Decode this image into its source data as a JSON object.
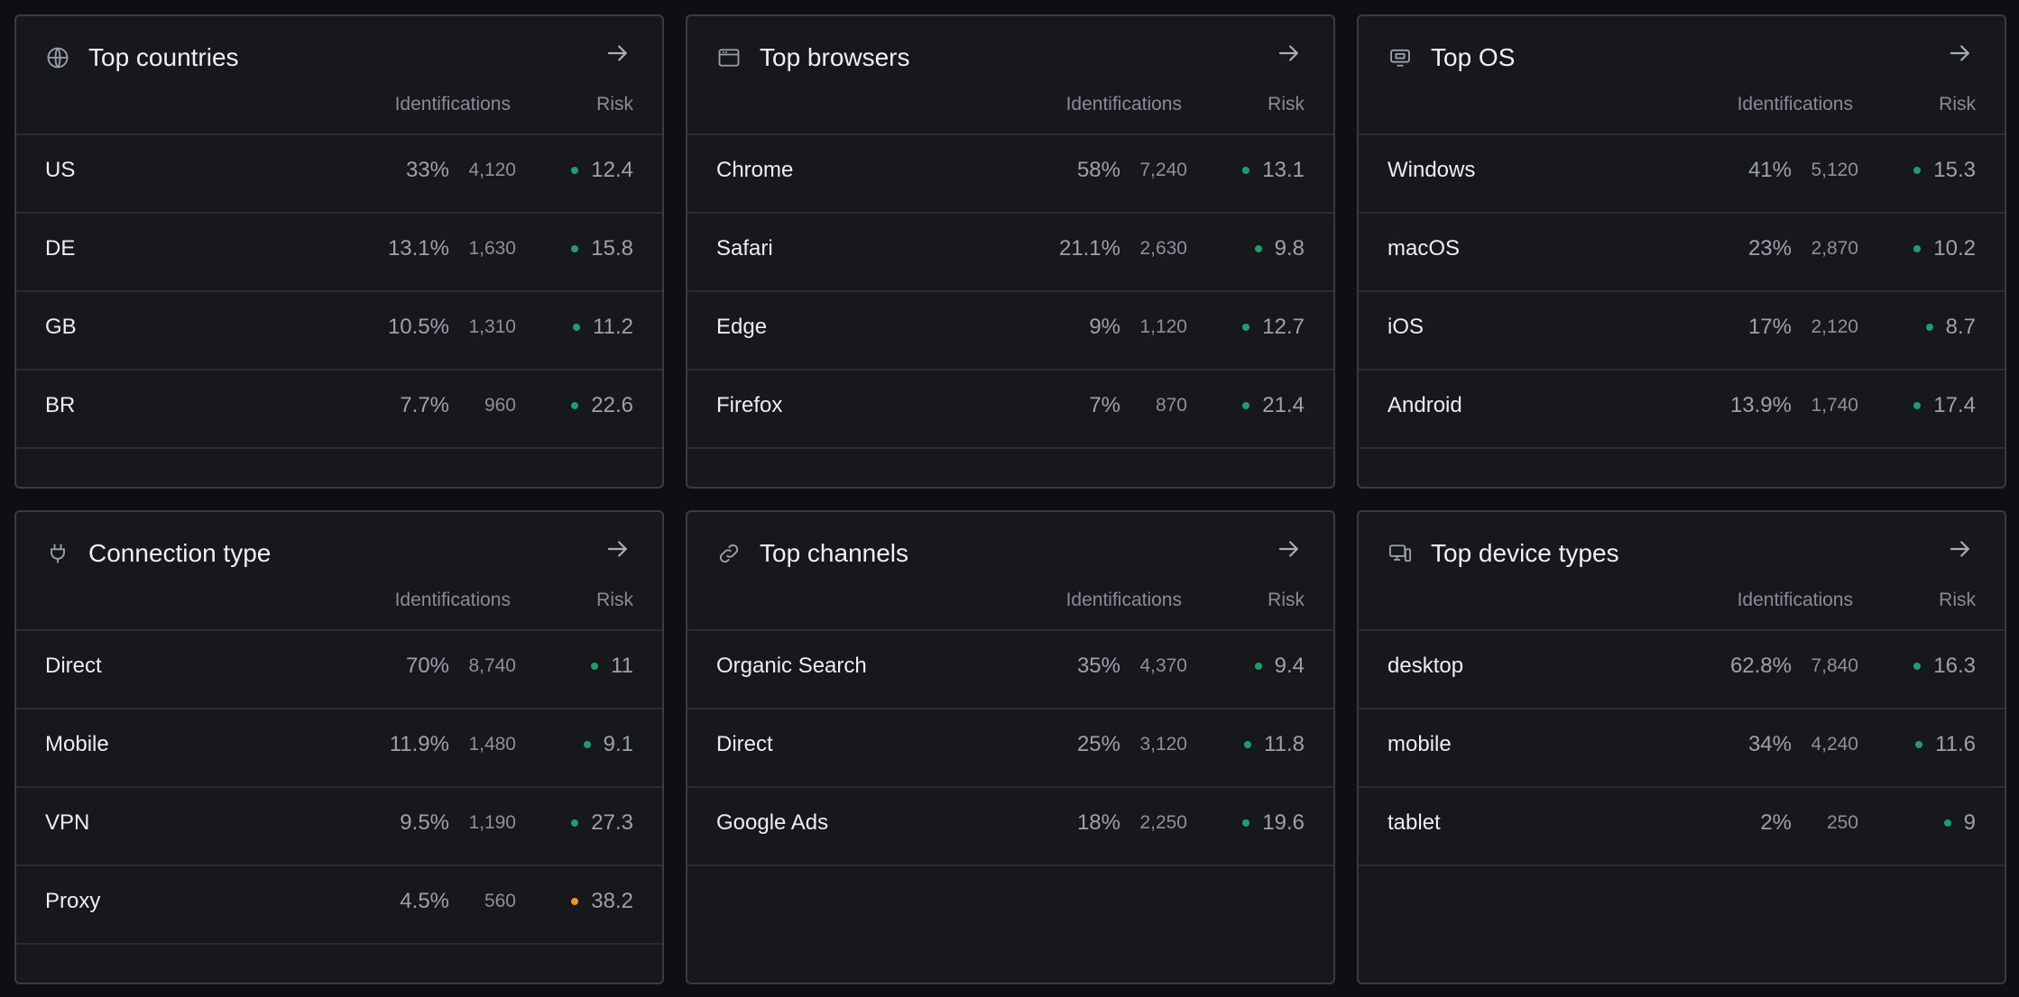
{
  "labels": {
    "identifications": "Identifications",
    "risk": "Risk"
  },
  "colors": {
    "low_risk": "#1f9e6b",
    "high_risk": "#f0932b"
  },
  "cards": [
    {
      "title": "Top countries",
      "icon": "globe-icon",
      "rows": [
        {
          "label": "US",
          "pct": "33%",
          "count": "4,120",
          "risk": "12.4",
          "level": "low"
        },
        {
          "label": "DE",
          "pct": "13.1%",
          "count": "1,630",
          "risk": "15.8",
          "level": "low"
        },
        {
          "label": "GB",
          "pct": "10.5%",
          "count": "1,310",
          "risk": "11.2",
          "level": "low"
        },
        {
          "label": "BR",
          "pct": "7.7%",
          "count": "960",
          "risk": "22.6",
          "level": "low"
        }
      ]
    },
    {
      "title": "Top browsers",
      "icon": "browser-window-icon",
      "rows": [
        {
          "label": "Chrome",
          "pct": "58%",
          "count": "7,240",
          "risk": "13.1",
          "level": "low"
        },
        {
          "label": "Safari",
          "pct": "21.1%",
          "count": "2,630",
          "risk": "9.8",
          "level": "low"
        },
        {
          "label": "Edge",
          "pct": "9%",
          "count": "1,120",
          "risk": "12.7",
          "level": "low"
        },
        {
          "label": "Firefox",
          "pct": "7%",
          "count": "870",
          "risk": "21.4",
          "level": "low"
        }
      ]
    },
    {
      "title": "Top OS",
      "icon": "monitor-icon",
      "rows": [
        {
          "label": "Windows",
          "pct": "41%",
          "count": "5,120",
          "risk": "15.3",
          "level": "low"
        },
        {
          "label": "macOS",
          "pct": "23%",
          "count": "2,870",
          "risk": "10.2",
          "level": "low"
        },
        {
          "label": "iOS",
          "pct": "17%",
          "count": "2,120",
          "risk": "8.7",
          "level": "low"
        },
        {
          "label": "Android",
          "pct": "13.9%",
          "count": "1,740",
          "risk": "17.4",
          "level": "low"
        }
      ]
    },
    {
      "title": "Connection type",
      "icon": "plug-icon",
      "rows": [
        {
          "label": "Direct",
          "pct": "70%",
          "count": "8,740",
          "risk": "11",
          "level": "low"
        },
        {
          "label": "Mobile",
          "pct": "11.9%",
          "count": "1,480",
          "risk": "9.1",
          "level": "low"
        },
        {
          "label": "VPN",
          "pct": "9.5%",
          "count": "1,190",
          "risk": "27.3",
          "level": "low"
        },
        {
          "label": "Proxy",
          "pct": "4.5%",
          "count": "560",
          "risk": "38.2",
          "level": "high"
        }
      ]
    },
    {
      "title": "Top channels",
      "icon": "link-icon",
      "rows": [
        {
          "label": "Organic Search",
          "pct": "35%",
          "count": "4,370",
          "risk": "9.4",
          "level": "low"
        },
        {
          "label": "Direct",
          "pct": "25%",
          "count": "3,120",
          "risk": "11.8",
          "level": "low"
        },
        {
          "label": "Google Ads",
          "pct": "18%",
          "count": "2,250",
          "risk": "19.6",
          "level": "low"
        }
      ]
    },
    {
      "title": "Top device types",
      "icon": "devices-icon",
      "rows": [
        {
          "label": "desktop",
          "pct": "62.8%",
          "count": "7,840",
          "risk": "16.3",
          "level": "low"
        },
        {
          "label": "mobile",
          "pct": "34%",
          "count": "4,240",
          "risk": "11.6",
          "level": "low"
        },
        {
          "label": "tablet",
          "pct": "2%",
          "count": "250",
          "risk": "9",
          "level": "low"
        }
      ]
    }
  ]
}
